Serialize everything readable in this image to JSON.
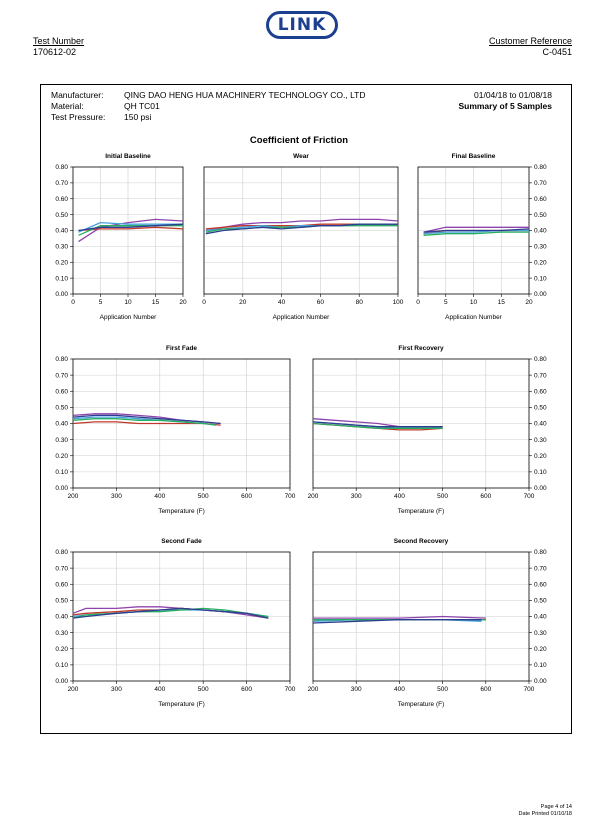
{
  "header": {
    "test_number_label": "Test Number",
    "test_number": "170612-02",
    "customer_reference_label": "Customer Reference",
    "customer_reference": "C-0451",
    "logo_text": "LINK"
  },
  "details": {
    "manufacturer_label": "Manufacturer:",
    "manufacturer": "QING DAO HENG HUA MACHINERY TECHNOLOGY CO., LTD",
    "material_label": "Material:",
    "material": "QH TC01",
    "pressure_label": "Test Pressure:",
    "pressure": "150 psi",
    "date_range": "01/04/18 to 01/08/18",
    "summary": "Summary of 5 Samples"
  },
  "report_title": "Coefficient of Friction",
  "footer": {
    "page": "Page 4 of 14",
    "printed": "Date Printed  01/10/18"
  },
  "series_colors": [
    "#8e44ad",
    "#c0392b",
    "#4aa3df",
    "#27ae60",
    "#2c3e8f"
  ],
  "chart_data": [
    {
      "type": "line",
      "title": "Initial Baseline",
      "xlabel": "Application Number",
      "ylabel": "",
      "xlim": [
        0,
        20
      ],
      "ylim": [
        0,
        0.8
      ],
      "xticks": [
        0,
        5,
        10,
        15,
        20
      ],
      "yticks": [
        0,
        0.1,
        0.2,
        0.3,
        0.4,
        0.5,
        0.6,
        0.7,
        0.8
      ],
      "yaxis": "left",
      "grid": true,
      "series": [
        {
          "x": [
            1,
            5,
            10,
            15,
            20
          ],
          "values": [
            0.33,
            0.42,
            0.45,
            0.47,
            0.46
          ]
        },
        {
          "x": [
            1,
            5,
            10,
            15,
            20
          ],
          "values": [
            0.4,
            0.41,
            0.41,
            0.42,
            0.41
          ]
        },
        {
          "x": [
            1,
            5,
            10,
            15,
            20
          ],
          "values": [
            0.39,
            0.45,
            0.44,
            0.44,
            0.44
          ]
        },
        {
          "x": [
            1,
            5,
            10,
            15,
            20
          ],
          "values": [
            0.37,
            0.43,
            0.43,
            0.43,
            0.43
          ]
        },
        {
          "x": [
            1,
            5,
            10,
            15,
            20
          ],
          "values": [
            0.4,
            0.42,
            0.42,
            0.43,
            0.44
          ]
        }
      ]
    },
    {
      "type": "line",
      "title": "Wear",
      "xlabel": "Application Number",
      "ylabel": "",
      "xlim": [
        0,
        100
      ],
      "ylim": [
        0,
        0.8
      ],
      "xticks": [
        0,
        20,
        40,
        60,
        80,
        100
      ],
      "yticks": [],
      "yaxis": "none",
      "grid": true,
      "series": [
        {
          "x": [
            1,
            10,
            20,
            30,
            40,
            50,
            60,
            70,
            80,
            90,
            100
          ],
          "values": [
            0.4,
            0.42,
            0.44,
            0.45,
            0.45,
            0.46,
            0.46,
            0.47,
            0.47,
            0.47,
            0.46
          ]
        },
        {
          "x": [
            1,
            10,
            20,
            30,
            40,
            50,
            60,
            70,
            80,
            90,
            100
          ],
          "values": [
            0.41,
            0.42,
            0.43,
            0.43,
            0.43,
            0.43,
            0.44,
            0.44,
            0.44,
            0.44,
            0.44
          ]
        },
        {
          "x": [
            1,
            10,
            20,
            30,
            40,
            50,
            60,
            70,
            80,
            90,
            100
          ],
          "values": [
            0.4,
            0.41,
            0.42,
            0.43,
            0.42,
            0.43,
            0.43,
            0.43,
            0.44,
            0.44,
            0.44
          ]
        },
        {
          "x": [
            1,
            10,
            20,
            30,
            40,
            50,
            60,
            70,
            80,
            90,
            100
          ],
          "values": [
            0.39,
            0.41,
            0.41,
            0.42,
            0.42,
            0.42,
            0.43,
            0.43,
            0.43,
            0.43,
            0.43
          ]
        },
        {
          "x": [
            1,
            10,
            20,
            30,
            40,
            50,
            60,
            70,
            80,
            90,
            100
          ],
          "values": [
            0.38,
            0.4,
            0.41,
            0.42,
            0.41,
            0.42,
            0.43,
            0.43,
            0.44,
            0.44,
            0.44
          ]
        }
      ]
    },
    {
      "type": "line",
      "title": "Final Baseline",
      "xlabel": "Application Number",
      "ylabel": "",
      "xlim": [
        0,
        20
      ],
      "ylim": [
        0,
        0.8
      ],
      "xticks": [
        0,
        5,
        10,
        15,
        20
      ],
      "yticks": [
        0,
        0.1,
        0.2,
        0.3,
        0.4,
        0.5,
        0.6,
        0.7,
        0.8
      ],
      "yaxis": "right",
      "grid": true,
      "series": [
        {
          "x": [
            1,
            5,
            10,
            15,
            20
          ],
          "values": [
            0.39,
            0.42,
            0.42,
            0.42,
            0.42
          ]
        },
        {
          "x": [
            1,
            5,
            10,
            15,
            20
          ],
          "values": [
            0.38,
            0.4,
            0.4,
            0.4,
            0.4
          ]
        },
        {
          "x": [
            1,
            5,
            10,
            15,
            20
          ],
          "values": [
            0.38,
            0.39,
            0.39,
            0.4,
            0.4
          ]
        },
        {
          "x": [
            1,
            5,
            10,
            15,
            20
          ],
          "values": [
            0.37,
            0.38,
            0.38,
            0.39,
            0.39
          ]
        },
        {
          "x": [
            1,
            5,
            10,
            15,
            20
          ],
          "values": [
            0.39,
            0.4,
            0.4,
            0.4,
            0.41
          ]
        }
      ]
    },
    {
      "type": "line",
      "title": "First Fade",
      "xlabel": "Temperature (F)",
      "ylabel": "",
      "xlim": [
        200,
        700
      ],
      "ylim": [
        0,
        0.8
      ],
      "xticks": [
        200,
        300,
        400,
        500,
        600,
        700
      ],
      "yticks": [
        0,
        0.1,
        0.2,
        0.3,
        0.4,
        0.5,
        0.6,
        0.7,
        0.8
      ],
      "yaxis": "left",
      "grid": true,
      "series": [
        {
          "x": [
            200,
            250,
            300,
            350,
            400,
            450,
            500,
            540
          ],
          "values": [
            0.45,
            0.46,
            0.46,
            0.45,
            0.44,
            0.42,
            0.41,
            0.4
          ]
        },
        {
          "x": [
            200,
            250,
            300,
            350,
            400,
            450,
            500,
            540
          ],
          "values": [
            0.4,
            0.41,
            0.41,
            0.4,
            0.4,
            0.4,
            0.4,
            0.39
          ]
        },
        {
          "x": [
            200,
            250,
            300,
            350,
            400,
            450,
            500,
            530
          ],
          "values": [
            0.43,
            0.44,
            0.44,
            0.43,
            0.42,
            0.41,
            0.4,
            0.39
          ]
        },
        {
          "x": [
            200,
            250,
            300,
            350,
            400,
            450,
            500,
            530
          ],
          "values": [
            0.42,
            0.43,
            0.43,
            0.42,
            0.42,
            0.41,
            0.4,
            0.39
          ]
        },
        {
          "x": [
            200,
            250,
            300,
            350,
            400,
            450,
            500,
            540
          ],
          "values": [
            0.44,
            0.45,
            0.45,
            0.44,
            0.43,
            0.42,
            0.41,
            0.4
          ]
        }
      ]
    },
    {
      "type": "line",
      "title": "First Recovery",
      "xlabel": "Temperature (F)",
      "ylabel": "",
      "xlim": [
        200,
        700
      ],
      "ylim": [
        0,
        0.8
      ],
      "xticks": [
        200,
        300,
        400,
        500,
        600,
        700
      ],
      "yticks": [
        0,
        0.1,
        0.2,
        0.3,
        0.4,
        0.5,
        0.6,
        0.7,
        0.8
      ],
      "yaxis": "right",
      "grid": true,
      "series": [
        {
          "x": [
            200,
            250,
            300,
            350,
            400,
            450,
            500
          ],
          "values": [
            0.43,
            0.42,
            0.41,
            0.4,
            0.38,
            0.38,
            0.38
          ]
        },
        {
          "x": [
            200,
            250,
            300,
            350,
            400,
            450,
            500
          ],
          "values": [
            0.4,
            0.39,
            0.38,
            0.37,
            0.36,
            0.36,
            0.37
          ]
        },
        {
          "x": [
            200,
            250,
            300,
            350,
            400,
            450,
            500
          ],
          "values": [
            0.41,
            0.4,
            0.39,
            0.38,
            0.37,
            0.37,
            0.37
          ]
        },
        {
          "x": [
            200,
            250,
            300,
            350,
            400,
            450,
            500
          ],
          "values": [
            0.4,
            0.39,
            0.38,
            0.37,
            0.37,
            0.37,
            0.37
          ]
        },
        {
          "x": [
            200,
            250,
            300,
            350,
            400,
            450,
            500
          ],
          "values": [
            0.41,
            0.4,
            0.39,
            0.38,
            0.38,
            0.38,
            0.38
          ]
        }
      ]
    },
    {
      "type": "line",
      "title": "Second Fade",
      "xlabel": "Temperature (F)",
      "ylabel": "",
      "xlim": [
        200,
        700
      ],
      "ylim": [
        0,
        0.8
      ],
      "xticks": [
        200,
        300,
        400,
        500,
        600,
        700
      ],
      "yticks": [
        0,
        0.1,
        0.2,
        0.3,
        0.4,
        0.5,
        0.6,
        0.7,
        0.8
      ],
      "yaxis": "left",
      "grid": true,
      "series": [
        {
          "x": [
            200,
            230,
            300,
            350,
            400,
            450,
            500,
            550,
            600,
            650
          ],
          "values": [
            0.42,
            0.45,
            0.45,
            0.46,
            0.46,
            0.45,
            0.44,
            0.43,
            0.41,
            0.39
          ]
        },
        {
          "x": [
            200,
            230,
            300,
            350,
            400,
            450,
            500,
            550,
            600,
            650
          ],
          "values": [
            0.41,
            0.42,
            0.43,
            0.44,
            0.44,
            0.45,
            0.44,
            0.43,
            0.42,
            0.39
          ]
        },
        {
          "x": [
            200,
            230,
            300,
            350,
            400,
            450,
            500,
            550,
            600,
            650
          ],
          "values": [
            0.4,
            0.41,
            0.42,
            0.43,
            0.44,
            0.44,
            0.44,
            0.43,
            0.42,
            0.4
          ]
        },
        {
          "x": [
            200,
            230,
            300,
            350,
            400,
            450,
            500,
            550,
            600,
            650
          ],
          "values": [
            0.39,
            0.41,
            0.42,
            0.43,
            0.43,
            0.44,
            0.45,
            0.44,
            0.42,
            0.4
          ]
        },
        {
          "x": [
            200,
            230,
            300,
            350,
            400,
            450,
            500,
            550,
            600,
            650
          ],
          "values": [
            0.39,
            0.4,
            0.42,
            0.43,
            0.44,
            0.45,
            0.44,
            0.43,
            0.42,
            0.39
          ]
        }
      ]
    },
    {
      "type": "line",
      "title": "Second Recovery",
      "xlabel": "Temperature (F)",
      "ylabel": "",
      "xlim": [
        200,
        700
      ],
      "ylim": [
        0,
        0.8
      ],
      "xticks": [
        200,
        300,
        400,
        500,
        600,
        700
      ],
      "yticks": [
        0,
        0.1,
        0.2,
        0.3,
        0.4,
        0.5,
        0.6,
        0.7,
        0.8
      ],
      "yaxis": "right",
      "grid": true,
      "series": [
        {
          "x": [
            200,
            300,
            400,
            500,
            600
          ],
          "values": [
            0.39,
            0.39,
            0.39,
            0.4,
            0.39
          ]
        },
        {
          "x": [
            200,
            300,
            400,
            500,
            600
          ],
          "values": [
            0.38,
            0.38,
            0.38,
            0.38,
            0.38
          ]
        },
        {
          "x": [
            200,
            300,
            400,
            500,
            590
          ],
          "values": [
            0.37,
            0.38,
            0.38,
            0.38,
            0.37
          ]
        },
        {
          "x": [
            200,
            300,
            400,
            500,
            600
          ],
          "values": [
            0.38,
            0.38,
            0.38,
            0.38,
            0.38
          ]
        },
        {
          "x": [
            200,
            300,
            400,
            500,
            590
          ],
          "values": [
            0.36,
            0.37,
            0.38,
            0.38,
            0.38
          ]
        }
      ]
    }
  ]
}
